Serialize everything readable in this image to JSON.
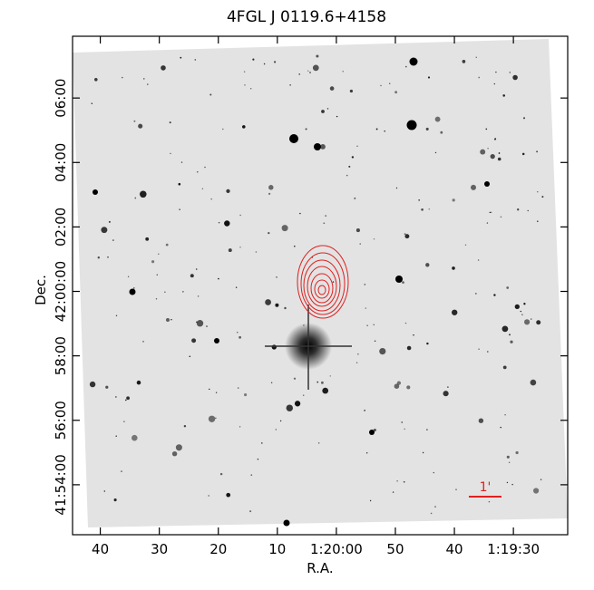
{
  "chart_data": {
    "type": "image",
    "title": "4FGL J 0119.6+4158",
    "xlabel": "R.A.",
    "ylabel": "Dec.",
    "xlim": [
      4844.7,
      4760.8
    ],
    "xticks": [
      {
        "value": 4840,
        "label": "40"
      },
      {
        "value": 4830,
        "label": "30"
      },
      {
        "value": 4820,
        "label": "20"
      },
      {
        "value": 4810,
        "label": "10"
      },
      {
        "value": 4800,
        "label": "1:20:00"
      },
      {
        "value": 4790,
        "label": "50"
      },
      {
        "value": 4780,
        "label": "40"
      },
      {
        "value": 4770,
        "label": "1:19:30"
      }
    ],
    "ylim": [
      150747,
      151675
    ],
    "yticks": [
      {
        "value": 150840,
        "label": "41:54:00"
      },
      {
        "value": 150960,
        "label": "56:00"
      },
      {
        "value": 151080,
        "label": "58:00"
      },
      {
        "value": 151200,
        "label": "42:00:00"
      },
      {
        "value": 151320,
        "label": "02:00"
      },
      {
        "value": 151440,
        "label": "04:00"
      },
      {
        "value": 151560,
        "label": "06:00"
      }
    ],
    "scale_label": "1'"
  }
}
